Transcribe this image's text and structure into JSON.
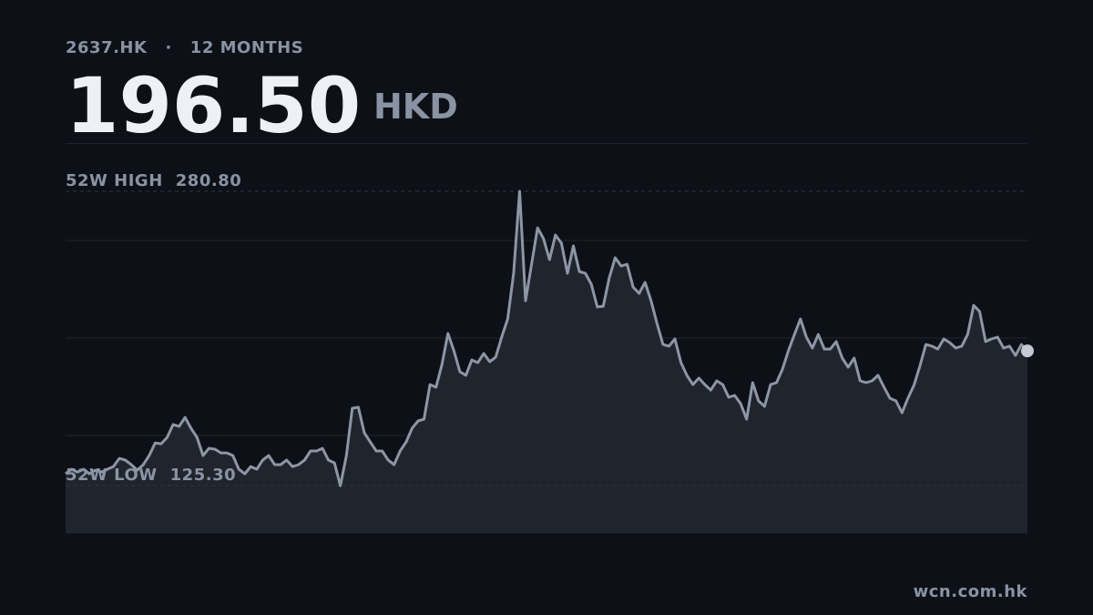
{
  "header": {
    "ticker": "2637.HK",
    "separator": "·",
    "period": "12 MONTHS",
    "price": "196.50",
    "currency": "HKD"
  },
  "chart_data": {
    "type": "line",
    "color": "#8d96a5",
    "area_color": "#20242c",
    "ylim": [
      100.3,
      306.3
    ],
    "values": [
      131.6,
      134.0,
      132.5,
      134.0,
      131.6,
      133.5,
      132.5,
      134.0,
      135.4,
      139.7,
      138.8,
      136.4,
      133.5,
      136.4,
      141.2,
      147.9,
      147.4,
      150.8,
      157.6,
      156.6,
      161.4,
      155.6,
      150.8,
      141.2,
      145.0,
      144.6,
      142.6,
      142.6,
      141.2,
      134.0,
      131.6,
      135.4,
      134.0,
      138.8,
      141.2,
      136.4,
      136.4,
      138.8,
      135.4,
      136.4,
      138.8,
      143.6,
      143.6,
      145.0,
      138.8,
      137.3,
      125.3,
      141.2,
      166.2,
      166.7,
      153.2,
      148.4,
      143.6,
      143.6,
      138.8,
      136.4,
      143.6,
      148.4,
      155.6,
      159.5,
      160.4,
      178.7,
      177.3,
      189.3,
      205.7,
      196.6,
      185.5,
      183.6,
      191.7,
      190.3,
      195.1,
      190.8,
      193.2,
      203.8,
      213.4,
      237.5,
      280.8,
      223.0,
      242.3,
      261.5,
      255.8,
      244.7,
      257.7,
      253.4,
      237.5,
      251.9,
      238.4,
      237.5,
      231.7,
      219.7,
      220.1,
      235.1,
      245.7,
      241.3,
      242.3,
      230.2,
      226.9,
      232.7,
      223.0,
      211.0,
      199.9,
      199.0,
      202.8,
      190.3,
      183.6,
      178.7,
      182.1,
      178.7,
      175.8,
      180.7,
      178.7,
      172.0,
      173.0,
      168.6,
      160.4,
      179.7,
      170.1,
      167.2,
      178.7,
      179.7,
      186.9,
      196.6,
      205.2,
      213.4,
      203.8,
      198.0,
      205.2,
      197.5,
      197.5,
      201.4,
      192.7,
      187.9,
      192.7,
      180.7,
      179.7,
      180.7,
      183.6,
      177.3,
      171.5,
      170.1,
      163.8,
      171.5,
      178.3,
      188.4,
      199.9,
      199.0,
      197.5,
      202.8,
      200.9,
      198.0,
      199.0,
      205.2,
      220.6,
      217.3,
      201.4,
      202.8,
      203.8,
      198.0,
      199.0,
      194.1,
      199.9,
      196.5
    ],
    "reference_lines": [
      {
        "label": "52W HIGH",
        "value": 280.8,
        "value_label": "280.80"
      },
      {
        "label": "52W LOW",
        "value": 125.3,
        "value_label": "125.30"
      }
    ]
  },
  "footer": {
    "source": "wcn.com.hk"
  }
}
